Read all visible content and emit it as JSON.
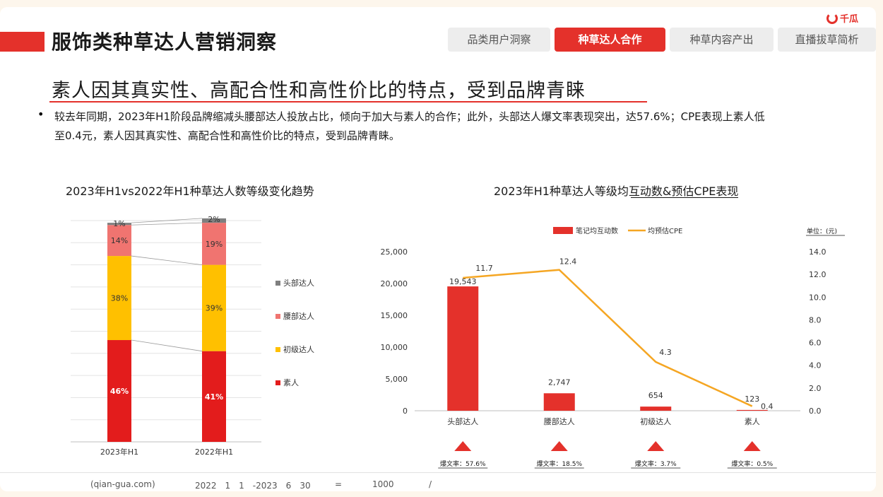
{
  "header": {
    "title": "服饰类种草达人营销洞察",
    "logo_text": "千瓜",
    "tabs": [
      {
        "label": "品类用户洞察",
        "active": false
      },
      {
        "label": "种草达人合作",
        "active": true
      },
      {
        "label": "种草内容产出",
        "active": false
      },
      {
        "label": "直播拔草简析",
        "active": false
      }
    ]
  },
  "headline": "素人因其真实性、高配合性和高性价比的特点，受到品牌青睐",
  "bullet": "较去年同期，2023年H1阶段品牌缩减头腰部达人投放占比，倾向于加大与素人的合作；此外，头部达人爆文率表现突出，达57.6%；CPE表现上素人低至0.4元，素人因其真实性、高配合性和高性价比的特点，受到品牌青睐。",
  "left_title": "2023年H1vs2022年H1种草达人数等级变化趋势",
  "right_title": "2023年H1种草达人等级均互动数&预估CPE表现",
  "colors": {
    "head": "#7f7f7f",
    "waist": "#f07470",
    "junior": "#ffc000",
    "amateur": "#e31c1c",
    "line": "#f5a623",
    "brand": "#e4312b"
  },
  "chart_data": [
    {
      "type": "bar",
      "stacked": true,
      "percent": true,
      "title": "2023年H1vs2022年H1种草达人数等级变化趋势",
      "categories": [
        "2023年H1",
        "2022年H1"
      ],
      "series": [
        {
          "name": "素人",
          "values": [
            46,
            41
          ],
          "labels": [
            "46%",
            "41%"
          ],
          "color": "#e31c1c"
        },
        {
          "name": "初级达人",
          "values": [
            38,
            39
          ],
          "labels": [
            "38%",
            "39%"
          ],
          "color": "#ffc000"
        },
        {
          "name": "腰部达人",
          "values": [
            14,
            19
          ],
          "labels": [
            "14%",
            "19%"
          ],
          "color": "#f07470"
        },
        {
          "name": "头部达人",
          "values": [
            1,
            2
          ],
          "labels": [
            "1%",
            "2%"
          ],
          "color": "#7f7f7f"
        }
      ],
      "legend": [
        "头部达人",
        "腰部达人",
        "初级达人",
        "素人"
      ],
      "legend_position": "right",
      "ylim": [
        0,
        100
      ],
      "grid": true
    },
    {
      "type": "bar",
      "title": "2023年H1种草达人等级均互动数&预估CPE表现",
      "unit_note": "单位：(元)",
      "categories": [
        "头部达人",
        "腰部达人",
        "初级达人",
        "素人"
      ],
      "series": [
        {
          "name": "笔记均互动数",
          "type": "bar",
          "axis": "left",
          "values": [
            19543,
            2747,
            654,
            123
          ],
          "labels": [
            "19,543",
            "2,747",
            "654",
            "123"
          ],
          "color": "#e4312b"
        },
        {
          "name": "均预估CPE",
          "type": "line",
          "axis": "right",
          "values": [
            11.7,
            12.4,
            4.3,
            0.4
          ],
          "labels": [
            "11.7",
            "12.4",
            "4.3",
            "0.4"
          ],
          "color": "#f5a623"
        }
      ],
      "y_left": {
        "ylim": [
          0,
          25000
        ],
        "ticks": [
          "0",
          "5,000",
          "10,000",
          "15,000",
          "20,000",
          "25,000"
        ]
      },
      "y_right": {
        "ylim": [
          0,
          14
        ],
        "ticks": [
          "0.0",
          "2.0",
          "4.0",
          "6.0",
          "8.0",
          "10.0",
          "12.0",
          "14.0"
        ]
      },
      "legend_position": "top",
      "grid": false,
      "annotations": [
        "爆文率：57.6%",
        "爆文率：18.5%",
        "爆文率：3.7%",
        "爆文率：0.5%"
      ]
    }
  ],
  "footer": {
    "source": "(qian-gua.com)",
    "period": "2022　1　1　-2023　6　30",
    "eq": "=",
    "num": "1000",
    "slash": "/"
  }
}
